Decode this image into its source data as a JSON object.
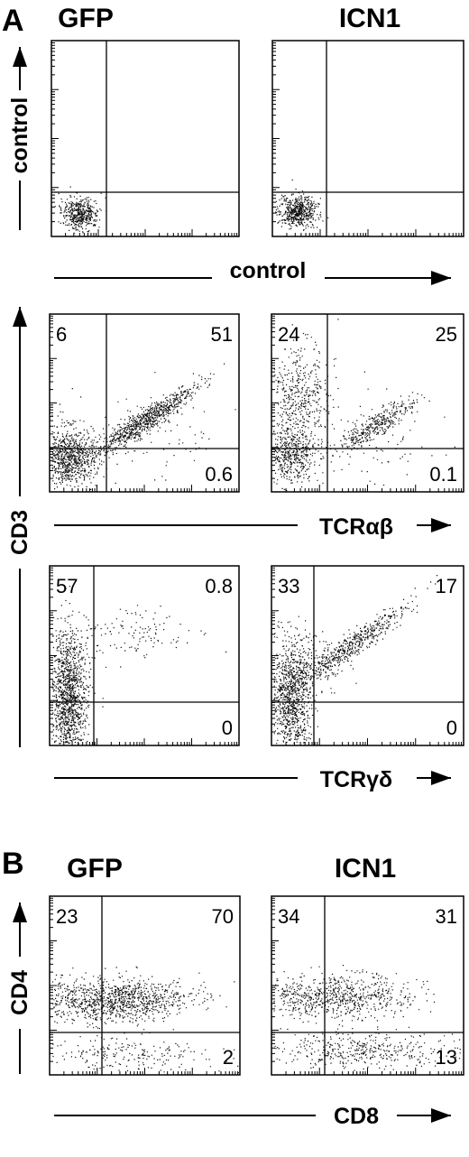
{
  "panel_a": {
    "label": "A",
    "columns": [
      "GFP",
      "ICN1"
    ],
    "control_row": {
      "y_axis": "control",
      "x_axis": "control"
    },
    "y_axis": "CD3",
    "rows": [
      {
        "x_axis": "TCRαβ",
        "plots": [
          [
            6,
            51,
            0.6
          ],
          [
            24,
            25,
            0.1
          ]
        ]
      },
      {
        "x_axis": "TCRγδ",
        "plots": [
          [
            57,
            0.8,
            0
          ],
          [
            33,
            17,
            0
          ]
        ]
      }
    ]
  },
  "panel_b": {
    "label": "B",
    "columns": [
      "GFP",
      "ICN1"
    ],
    "y_axis": "CD4",
    "x_axis": "CD8",
    "plots": [
      [
        23,
        70,
        2
      ],
      [
        34,
        31,
        13
      ]
    ]
  }
}
